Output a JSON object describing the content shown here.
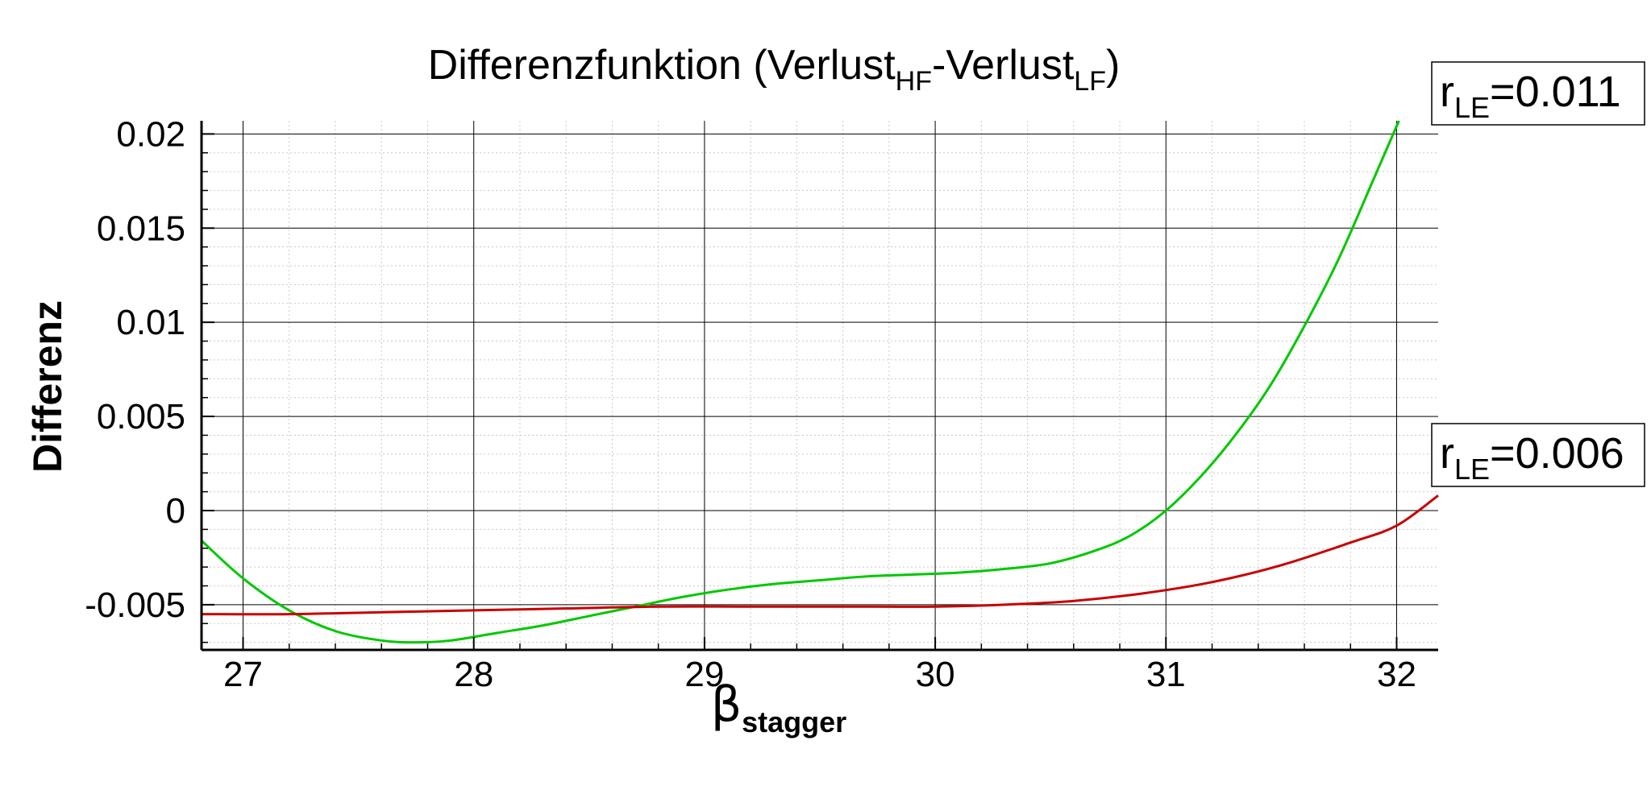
{
  "chart_data": {
    "type": "line",
    "title": {
      "prefix": "Differenzfunktion (Verlust",
      "sub1": "HF",
      "middle": "-Verlust",
      "sub2": "LF",
      "suffix": ")"
    },
    "ylabel": "Differenz",
    "xlabel": {
      "symbol": "β",
      "subscript": "stagger"
    },
    "xlim": [
      26.82,
      32.18
    ],
    "ylim": [
      -0.0074,
      0.0207
    ],
    "x_ticks": [
      27,
      28,
      29,
      30,
      31,
      32
    ],
    "x_tick_labels": [
      "27",
      "28",
      "29",
      "30",
      "31",
      "32"
    ],
    "y_ticks": [
      -0.005,
      0,
      0.005,
      0.01,
      0.015,
      0.02
    ],
    "y_tick_labels": [
      "-0.005",
      "0",
      "0.005",
      "0.01",
      "0.015",
      "0.02"
    ],
    "grid": true,
    "series": [
      {
        "color": "#00c800",
        "label": {
          "main": "r",
          "sub": "LE",
          "value": "=0.011"
        },
        "points": [
          [
            26.82,
            -0.0016
          ],
          [
            27.0,
            -0.0036
          ],
          [
            27.2,
            -0.0053
          ],
          [
            27.4,
            -0.0064
          ],
          [
            27.6,
            -0.0069
          ],
          [
            27.75,
            -0.007
          ],
          [
            27.9,
            -0.0069
          ],
          [
            28.1,
            -0.0065
          ],
          [
            28.3,
            -0.0061
          ],
          [
            28.5,
            -0.0056
          ],
          [
            28.7,
            -0.0051
          ],
          [
            28.9,
            -0.0046
          ],
          [
            29.1,
            -0.0042
          ],
          [
            29.3,
            -0.0039
          ],
          [
            29.5,
            -0.0037
          ],
          [
            29.7,
            -0.0035
          ],
          [
            29.9,
            -0.0034
          ],
          [
            30.1,
            -0.0033
          ],
          [
            30.3,
            -0.0031
          ],
          [
            30.5,
            -0.0028
          ],
          [
            30.7,
            -0.0021
          ],
          [
            30.85,
            -0.0013
          ],
          [
            31.0,
            0.0
          ],
          [
            31.15,
            0.0018
          ],
          [
            31.3,
            0.004
          ],
          [
            31.45,
            0.0066
          ],
          [
            31.6,
            0.0098
          ],
          [
            31.75,
            0.0134
          ],
          [
            31.9,
            0.0176
          ],
          [
            32.01,
            0.0207
          ]
        ]
      },
      {
        "color": "#c80000",
        "label": {
          "main": "r",
          "sub": "LE",
          "value": "=0.006"
        },
        "points": [
          [
            26.82,
            -0.0055
          ],
          [
            27.2,
            -0.0055
          ],
          [
            27.6,
            -0.0054
          ],
          [
            28.0,
            -0.0053
          ],
          [
            28.4,
            -0.0052
          ],
          [
            28.8,
            -0.0051
          ],
          [
            29.2,
            -0.0051
          ],
          [
            29.6,
            -0.0051
          ],
          [
            30.0,
            -0.0051
          ],
          [
            30.3,
            -0.005
          ],
          [
            30.6,
            -0.0048
          ],
          [
            30.9,
            -0.0044
          ],
          [
            31.2,
            -0.0038
          ],
          [
            31.5,
            -0.0029
          ],
          [
            31.8,
            -0.0017
          ],
          [
            32.0,
            -0.0008
          ],
          [
            32.18,
            0.0008
          ]
        ]
      }
    ]
  }
}
